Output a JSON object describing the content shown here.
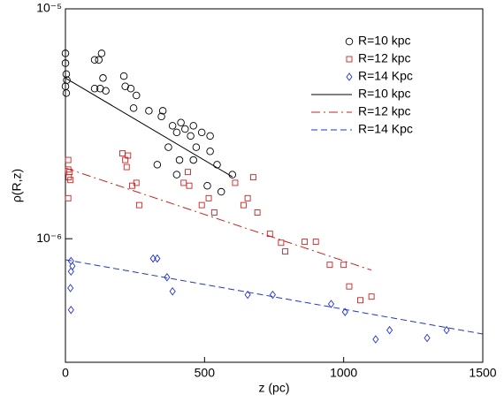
{
  "chart_data": {
    "type": "scatter",
    "xlabel": "z (pc)",
    "ylabel": "ρ(R,z)",
    "xlim": [
      0,
      1500
    ],
    "xticks": [
      0,
      500,
      1000,
      1500
    ],
    "ylim": [
      2.9e-07,
      1e-05
    ],
    "ylog": true,
    "yticks": [
      {
        "value": 1e-05,
        "label": "10⁻⁵"
      },
      {
        "value": 1e-06,
        "label": "10⁻⁶"
      }
    ],
    "legend": "upper right",
    "series": [
      {
        "name": "R=10 kpc",
        "color": "#000000",
        "marker": "circle",
        "x": [
          0,
          0,
          3,
          5,
          0,
          3,
          105,
          120,
          130,
          105,
          125,
          135,
          145,
          210,
          215,
          235,
          255,
          245,
          300,
          345,
          350,
          415,
          385,
          430,
          460,
          400,
          450,
          490,
          470,
          520,
          545,
          330,
          410,
          460,
          370,
          520,
          400,
          600,
          560,
          510
        ],
        "values": [
          6.4e-06,
          5.8e-06,
          5.2e-06,
          4.9e-06,
          4.6e-06,
          4.3e-06,
          6e-06,
          6e-06,
          6.4e-06,
          4.5e-06,
          4.5e-06,
          5e-06,
          4.4e-06,
          5.1e-06,
          4.6e-06,
          4.5e-06,
          4.2e-06,
          3.7e-06,
          3.6e-06,
          3.4e-06,
          3.6e-06,
          3.2e-06,
          3.1e-06,
          3e-06,
          3.1e-06,
          2.9e-06,
          2.8e-06,
          2.9e-06,
          2.5e-06,
          2.4e-06,
          2.1e-06,
          2.1e-06,
          2.2e-06,
          2.2e-06,
          2.5e-06,
          2.8e-06,
          1.9e-06,
          1.9e-06,
          1.6e-06,
          1.7e-06
        ]
      },
      {
        "name": "R=12 kpc",
        "color": "#cc2222",
        "marker": "square",
        "x": [
          10,
          10,
          15,
          12,
          18,
          10,
          205,
          215,
          220,
          225,
          240,
          255,
          265,
          425,
          445,
          440,
          490,
          515,
          535,
          610,
          640,
          655,
          675,
          690,
          735,
          775,
          790,
          860,
          900,
          950,
          1000,
          1020,
          1060,
          1100
        ],
        "values": [
          2.2e-06,
          2e-06,
          1.95e-06,
          1.85e-06,
          1.8e-06,
          1.5e-06,
          2.35e-06,
          2.2e-06,
          2.05e-06,
          2.3e-06,
          1.7e-06,
          1.75e-06,
          1.4e-06,
          1.75e-06,
          1.7e-06,
          1.95e-06,
          1.4e-06,
          1.5e-06,
          1.3e-06,
          1.75e-06,
          1.4e-06,
          1.5e-06,
          1.85e-06,
          1.3e-06,
          1.05e-06,
          9.6e-07,
          8.8e-07,
          9.7e-07,
          9.7e-07,
          7.7e-07,
          7.7e-07,
          6.2e-07,
          5.4e-07,
          5.6e-07
        ]
      },
      {
        "name": "R=14 Kpc",
        "color": "#2233cc",
        "marker": "diamond",
        "x": [
          20,
          25,
          20,
          18,
          20,
          315,
          330,
          365,
          385,
          655,
          745,
          955,
          1005,
          1115,
          1165,
          1300,
          1370
        ],
        "values": [
          8e-07,
          7.6e-07,
          7.2e-07,
          6.1e-07,
          4.9e-07,
          8.2e-07,
          8.2e-07,
          6.8e-07,
          5.9e-07,
          5.7e-07,
          5.7e-07,
          5.2e-07,
          4.8e-07,
          3.65e-07,
          4e-07,
          3.7e-07,
          4e-07
        ]
      },
      {
        "name": "R=10 kpc",
        "color": "#000000",
        "linestyle": "solid",
        "x": [
          0,
          600
        ],
        "values": [
          5e-06,
          1.86e-06
        ]
      },
      {
        "name": "R=12 kpc",
        "color": "#cc2222",
        "linestyle": "dashdot",
        "x": [
          0,
          1100
        ],
        "values": [
          2.03e-06,
          7.3e-07
        ]
      },
      {
        "name": "R=14 Kpc",
        "color": "#2233cc",
        "linestyle": "dashed",
        "x": [
          0,
          1500
        ],
        "values": [
          8.1e-07,
          3.85e-07
        ]
      }
    ]
  }
}
